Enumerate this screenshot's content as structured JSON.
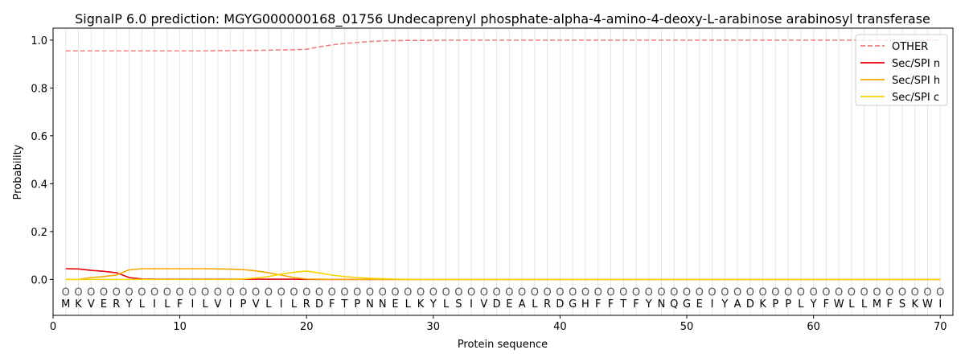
{
  "chart_data": {
    "type": "line",
    "title": "SignalP 6.0 prediction: MGYG000000168_01756 Undecaprenyl phosphate-alpha-4-amino-4-deoxy-L-arabinose arabinosyl transferase",
    "xlabel": "Protein sequence",
    "ylabel": "Probability",
    "xlim": [
      0,
      71
    ],
    "ylim": [
      -0.15,
      1.05
    ],
    "x_ticks": [
      0,
      10,
      20,
      30,
      40,
      50,
      60,
      70
    ],
    "y_ticks": [
      0.0,
      0.2,
      0.4,
      0.6,
      0.8,
      1.0
    ],
    "x_tick_labels": [
      "0",
      "10",
      "20",
      "30",
      "40",
      "50",
      "60",
      "70"
    ],
    "y_tick_labels": [
      "0.0",
      "0.2",
      "0.4",
      "0.6",
      "0.8",
      "1.0"
    ],
    "sequence": [
      "M",
      "K",
      "V",
      "E",
      "R",
      "Y",
      "L",
      "I",
      "L",
      "F",
      "I",
      "L",
      "V",
      "I",
      "P",
      "V",
      "L",
      "I",
      "L",
      "R",
      "D",
      "F",
      "T",
      "P",
      "N",
      "N",
      "E",
      "L",
      "K",
      "Y",
      "L",
      "S",
      "I",
      "V",
      "D",
      "E",
      "A",
      "L",
      "R",
      "D",
      "G",
      "H",
      "F",
      "F",
      "T",
      "F",
      "Y",
      "N",
      "Q",
      "G",
      "E",
      "I",
      "Y",
      "A",
      "D",
      "K",
      "P",
      "P",
      "L",
      "Y",
      "F",
      "W",
      "L",
      "L",
      "M",
      "F",
      "S",
      "K",
      "W",
      "I"
    ],
    "region_marker": "O",
    "legend_position": "top-right",
    "grid": "vertical lines at each residue",
    "series": [
      {
        "name": "OTHER",
        "color": "#f08080",
        "style": "dashed",
        "values": [
          0.955,
          0.955,
          0.955,
          0.955,
          0.955,
          0.955,
          0.955,
          0.955,
          0.955,
          0.955,
          0.955,
          0.955,
          0.956,
          0.956,
          0.957,
          0.957,
          0.958,
          0.959,
          0.96,
          0.962,
          0.972,
          0.98,
          0.986,
          0.99,
          0.994,
          0.997,
          0.998,
          0.999,
          0.999,
          0.999,
          1.0,
          1.0,
          1.0,
          1.0,
          1.0,
          1.0,
          1.0,
          1.0,
          1.0,
          1.0,
          1.0,
          1.0,
          1.0,
          1.0,
          1.0,
          1.0,
          1.0,
          1.0,
          1.0,
          1.0,
          1.0,
          1.0,
          1.0,
          1.0,
          1.0,
          1.0,
          1.0,
          1.0,
          1.0,
          1.0,
          1.0,
          1.0,
          1.0,
          1.0,
          1.0,
          1.0,
          1.0,
          1.0,
          1.0,
          1.0
        ]
      },
      {
        "name": "Sec/SPI n",
        "color": "#e8000b",
        "style": "solid",
        "values": [
          0.045,
          0.044,
          0.038,
          0.034,
          0.028,
          0.008,
          0.002,
          0.001,
          0.001,
          0.001,
          0.001,
          0.001,
          0.001,
          0.001,
          0.001,
          0.001,
          0.001,
          0.001,
          0.001,
          0.0,
          0.0,
          0.0,
          0.0,
          0.0,
          0.0,
          0.0,
          0.0,
          0.0,
          0.0,
          0.0,
          0.0,
          0.0,
          0.0,
          0.0,
          0.0,
          0.0,
          0.0,
          0.0,
          0.0,
          0.0,
          0.0,
          0.0,
          0.0,
          0.0,
          0.0,
          0.0,
          0.0,
          0.0,
          0.0,
          0.0,
          0.0,
          0.0,
          0.0,
          0.0,
          0.0,
          0.0,
          0.0,
          0.0,
          0.0,
          0.0,
          0.0,
          0.0,
          0.0,
          0.0,
          0.0,
          0.0,
          0.0,
          0.0,
          0.0,
          0.0
        ]
      },
      {
        "name": "Sec/SPI h",
        "color": "#f5a800",
        "style": "solid",
        "values": [
          0.0,
          0.0,
          0.008,
          0.012,
          0.018,
          0.04,
          0.045,
          0.045,
          0.045,
          0.045,
          0.045,
          0.045,
          0.044,
          0.043,
          0.041,
          0.036,
          0.028,
          0.018,
          0.008,
          0.002,
          0.001,
          0.0,
          0.0,
          0.0,
          0.0,
          0.0,
          0.0,
          0.0,
          0.0,
          0.0,
          0.0,
          0.0,
          0.0,
          0.0,
          0.0,
          0.0,
          0.0,
          0.0,
          0.0,
          0.0,
          0.0,
          0.0,
          0.0,
          0.0,
          0.0,
          0.0,
          0.0,
          0.0,
          0.0,
          0.0,
          0.0,
          0.0,
          0.0,
          0.0,
          0.0,
          0.0,
          0.0,
          0.0,
          0.0,
          0.0,
          0.0,
          0.0,
          0.0,
          0.0,
          0.0,
          0.0,
          0.0,
          0.0,
          0.0,
          0.0
        ]
      },
      {
        "name": "Sec/SPI c",
        "color": "#f5d400",
        "style": "solid",
        "values": [
          0.0,
          0.0,
          0.0,
          0.0,
          0.0,
          0.0,
          0.0,
          0.0,
          0.0,
          0.0,
          0.0,
          0.0,
          0.0,
          0.0,
          0.002,
          0.006,
          0.012,
          0.022,
          0.03,
          0.035,
          0.027,
          0.018,
          0.012,
          0.008,
          0.005,
          0.003,
          0.001,
          0.0,
          0.0,
          0.0,
          0.0,
          0.0,
          0.0,
          0.0,
          0.0,
          0.0,
          0.0,
          0.0,
          0.0,
          0.0,
          0.0,
          0.0,
          0.0,
          0.0,
          0.0,
          0.0,
          0.0,
          0.0,
          0.0,
          0.0,
          0.0,
          0.0,
          0.0,
          0.0,
          0.0,
          0.0,
          0.0,
          0.0,
          0.0,
          0.0,
          0.0,
          0.0,
          0.0,
          0.0,
          0.0,
          0.0,
          0.0,
          0.0,
          0.0,
          0.0
        ]
      }
    ]
  }
}
